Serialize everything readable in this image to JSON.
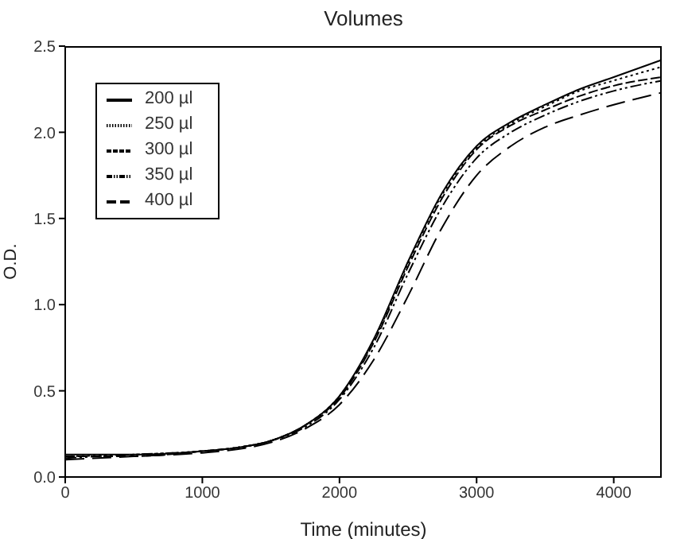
{
  "chart_data": {
    "type": "line",
    "title": "Volumes",
    "xlabel": "Time (minutes)",
    "ylabel": "O.D.",
    "x": [
      0,
      500,
      1000,
      1250,
      1500,
      1750,
      2000,
      2250,
      2500,
      2750,
      3000,
      3250,
      3500,
      3750,
      4000,
      4350
    ],
    "series": [
      {
        "name": "200 µl",
        "color": "#000000",
        "line_style": "solid",
        "values": [
          0.13,
          0.13,
          0.15,
          0.17,
          0.21,
          0.3,
          0.47,
          0.8,
          1.25,
          1.65,
          1.92,
          2.06,
          2.16,
          2.25,
          2.32,
          2.42
        ]
      },
      {
        "name": "250 µl",
        "color": "#000000",
        "line_style": "dotted",
        "values": [
          0.12,
          0.13,
          0.15,
          0.17,
          0.21,
          0.3,
          0.47,
          0.79,
          1.24,
          1.64,
          1.91,
          2.05,
          2.15,
          2.24,
          2.3,
          2.38
        ]
      },
      {
        "name": "300 µl",
        "color": "#000000",
        "line_style": "dashed",
        "values": [
          0.12,
          0.12,
          0.15,
          0.17,
          0.21,
          0.3,
          0.46,
          0.78,
          1.22,
          1.62,
          1.9,
          2.04,
          2.13,
          2.21,
          2.27,
          2.32
        ]
      },
      {
        "name": "350 µl",
        "color": "#000000",
        "line_style": "dashdot",
        "values": [
          0.11,
          0.13,
          0.15,
          0.17,
          0.21,
          0.29,
          0.45,
          0.75,
          1.18,
          1.57,
          1.85,
          2.0,
          2.1,
          2.18,
          2.24,
          2.3
        ]
      },
      {
        "name": "400 µl",
        "color": "#000000",
        "line_style": "longdash",
        "values": [
          0.1,
          0.12,
          0.14,
          0.16,
          0.2,
          0.28,
          0.42,
          0.68,
          1.05,
          1.45,
          1.75,
          1.92,
          2.03,
          2.1,
          2.16,
          2.23
        ]
      }
    ],
    "xlim": [
      0,
      4350
    ],
    "xticks": [
      0,
      1000,
      2000,
      3000,
      4000
    ],
    "ylim": [
      0,
      2.5
    ],
    "yticks": [
      {
        "value": 0,
        "label": "0.0"
      },
      {
        "value": 0.5,
        "label": "0.5"
      },
      {
        "value": 1,
        "label": "1.0"
      },
      {
        "value": 1.5,
        "label": "1.5"
      },
      {
        "value": 2,
        "label": "2.0"
      },
      {
        "value": 2.5,
        "label": "2.5"
      }
    ],
    "grid": false,
    "legend": "top left",
    "marker": "none"
  }
}
